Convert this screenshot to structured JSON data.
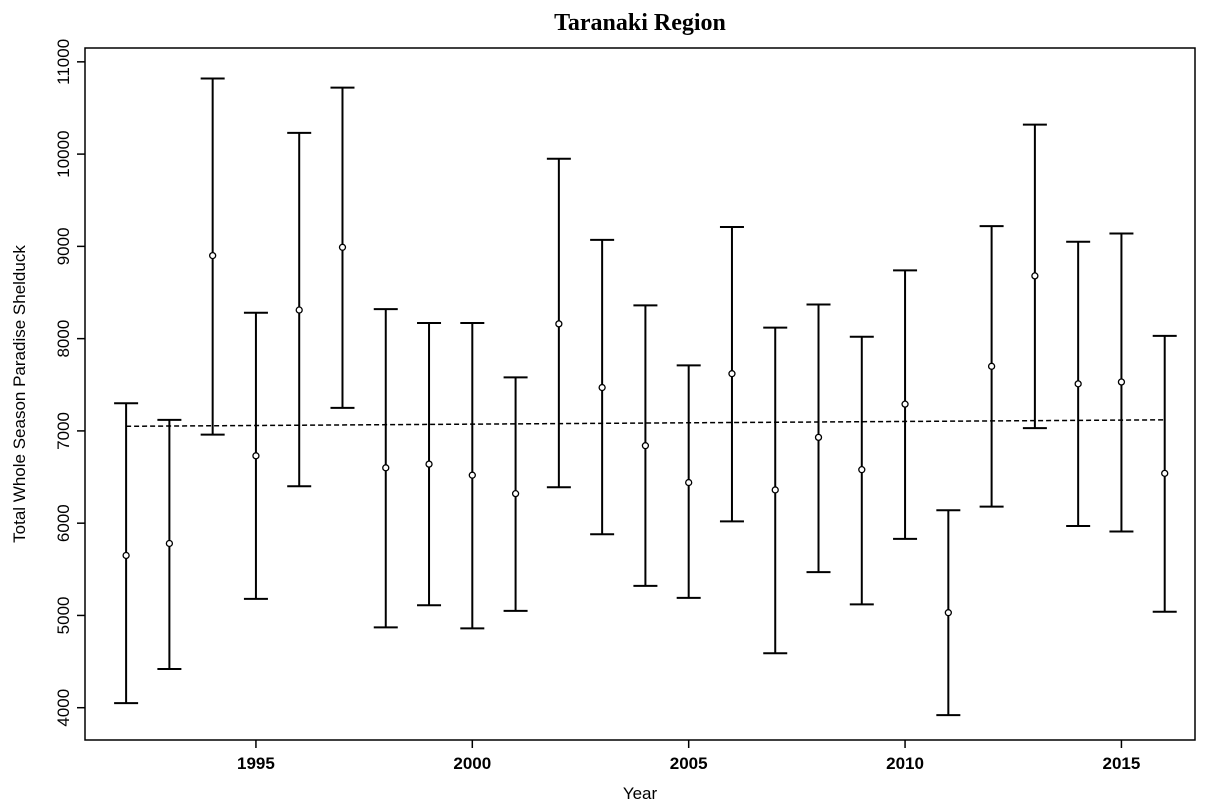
{
  "chart_data": {
    "type": "errorbar",
    "title": "Taranaki Region",
    "x_label": "Year",
    "y_label": "Total Whole Season Paradise Shelduck",
    "x": [
      1992,
      1993,
      1994,
      1995,
      1996,
      1997,
      1998,
      1999,
      2000,
      2001,
      2002,
      2003,
      2004,
      2005,
      2006,
      2007,
      2008,
      2009,
      2010,
      2011,
      2012,
      2013,
      2014,
      2015,
      2016
    ],
    "values": [
      5650,
      5780,
      8900,
      6730,
      8310,
      8990,
      6600,
      6640,
      6520,
      6320,
      8160,
      7470,
      6840,
      6440,
      7620,
      6360,
      6930,
      6580,
      7290,
      5030,
      7700,
      8680,
      7510,
      7530,
      6540
    ],
    "lower": [
      4050,
      4420,
      6960,
      5180,
      6400,
      7250,
      4870,
      5110,
      4860,
      5050,
      6390,
      5880,
      5320,
      5190,
      6020,
      4590,
      5470,
      5120,
      5830,
      3920,
      6180,
      7030,
      5970,
      5910,
      5040
    ],
    "upper": [
      7300,
      7120,
      10820,
      8280,
      10230,
      10720,
      8320,
      8170,
      8170,
      7580,
      9950,
      9070,
      8360,
      7710,
      9210,
      8120,
      8370,
      8020,
      8740,
      6140,
      9220,
      10320,
      9050,
      9140,
      8030
    ],
    "color": "#000000",
    "trend": {
      "x": [
        1992,
        2016
      ],
      "values": [
        7050,
        7120
      ]
    },
    "xlim": [
      1991.05,
      2016.7
    ],
    "xticks": [
      1995,
      2000,
      2005,
      2010,
      2015
    ],
    "ylim": [
      3650,
      11150
    ],
    "yticks": [
      4000,
      5000,
      6000,
      7000,
      8000,
      9000,
      10000,
      11000
    ]
  }
}
